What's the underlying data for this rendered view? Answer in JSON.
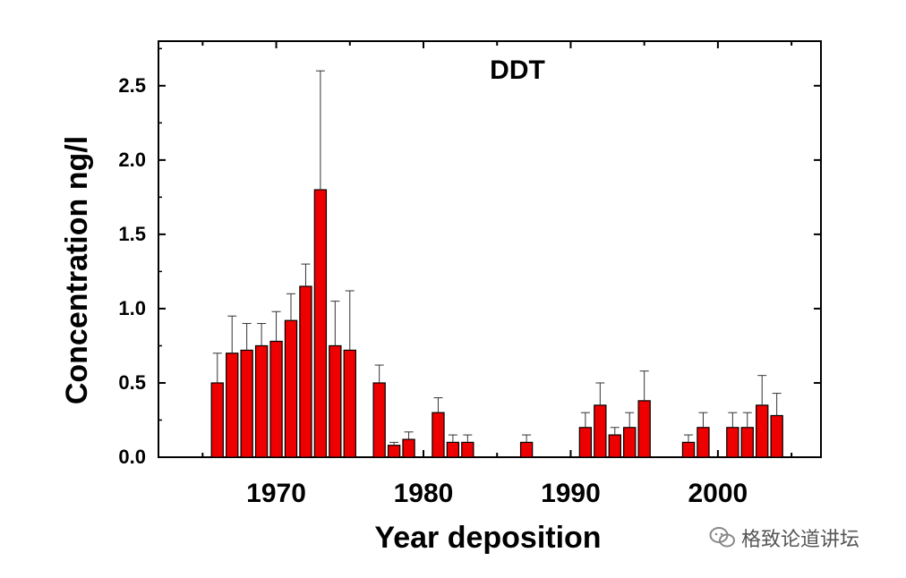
{
  "chart_data": {
    "type": "bar",
    "title": "DDT",
    "xlabel": "Year deposition",
    "ylabel": "Concentration ng/l",
    "xlim": [
      1962,
      2007
    ],
    "ylim": [
      0,
      2.8
    ],
    "xticks": [
      1970,
      1980,
      1990,
      2000
    ],
    "yticks": [
      0.0,
      0.5,
      1.0,
      1.5,
      2.0,
      2.5
    ],
    "ytick_labels": [
      "0.0",
      "0.5",
      "1.0",
      "1.5",
      "2.0",
      "2.5"
    ],
    "bar_width_years": 0.8,
    "bar_color": "#ee0000",
    "data": [
      {
        "year": 1966,
        "value": 0.5,
        "error": 0.2
      },
      {
        "year": 1967,
        "value": 0.7,
        "error": 0.25
      },
      {
        "year": 1968,
        "value": 0.72,
        "error": 0.18
      },
      {
        "year": 1969,
        "value": 0.75,
        "error": 0.15
      },
      {
        "year": 1970,
        "value": 0.78,
        "error": 0.2
      },
      {
        "year": 1971,
        "value": 0.92,
        "error": 0.18
      },
      {
        "year": 1972,
        "value": 1.15,
        "error": 0.15
      },
      {
        "year": 1973,
        "value": 1.8,
        "error": 0.8
      },
      {
        "year": 1974,
        "value": 0.75,
        "error": 0.3
      },
      {
        "year": 1975,
        "value": 0.72,
        "error": 0.4
      },
      {
        "year": 1977,
        "value": 0.5,
        "error": 0.12
      },
      {
        "year": 1978,
        "value": 0.08,
        "error": 0.02
      },
      {
        "year": 1979,
        "value": 0.12,
        "error": 0.05
      },
      {
        "year": 1981,
        "value": 0.3,
        "error": 0.1
      },
      {
        "year": 1982,
        "value": 0.1,
        "error": 0.05
      },
      {
        "year": 1983,
        "value": 0.1,
        "error": 0.05
      },
      {
        "year": 1987,
        "value": 0.1,
        "error": 0.05
      },
      {
        "year": 1991,
        "value": 0.2,
        "error": 0.1
      },
      {
        "year": 1992,
        "value": 0.35,
        "error": 0.15
      },
      {
        "year": 1993,
        "value": 0.15,
        "error": 0.05
      },
      {
        "year": 1994,
        "value": 0.2,
        "error": 0.1
      },
      {
        "year": 1995,
        "value": 0.38,
        "error": 0.2
      },
      {
        "year": 1998,
        "value": 0.1,
        "error": 0.05
      },
      {
        "year": 1999,
        "value": 0.2,
        "error": 0.1
      },
      {
        "year": 2001,
        "value": 0.2,
        "error": 0.1
      },
      {
        "year": 2002,
        "value": 0.2,
        "error": 0.1
      },
      {
        "year": 2003,
        "value": 0.35,
        "error": 0.2
      },
      {
        "year": 2004,
        "value": 0.28,
        "error": 0.15
      }
    ]
  },
  "watermark": {
    "text": "格致论道讲坛",
    "icon": "wechat-icon"
  }
}
